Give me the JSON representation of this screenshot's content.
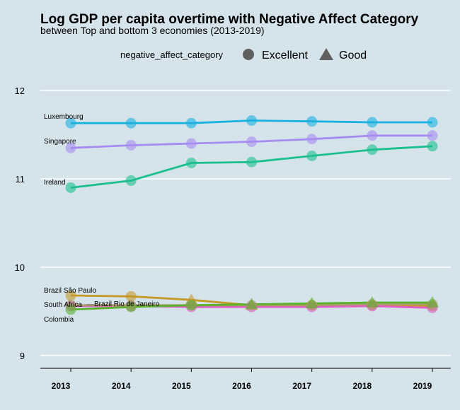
{
  "chart_data": {
    "type": "line",
    "title": "Log GDP per capita overtime with Negative Affect Category",
    "subtitle": "between Top and bottom 3 economies (2013-2019)",
    "xlabel": "",
    "ylabel": "",
    "x": [
      2013,
      2014,
      2015,
      2016,
      2017,
      2018,
      2019
    ],
    "xlim": [
      2013,
      2019
    ],
    "ylim": [
      8.95,
      12.1
    ],
    "y_ticks": [
      9,
      10,
      11,
      12
    ],
    "grid": "horizontal",
    "legend": {
      "title": "negative_affect_category",
      "placement": "top",
      "items": [
        {
          "label": "Excellent",
          "shape": "circle"
        },
        {
          "label": "Good",
          "shape": "triangle"
        }
      ]
    },
    "series": [
      {
        "name": "Luxembourg",
        "color": "#1ab0e0",
        "values": [
          11.63,
          11.63,
          11.63,
          11.66,
          11.65,
          11.64,
          11.64
        ],
        "shapes": [
          "circle",
          "circle",
          "circle",
          "circle",
          "circle",
          "circle",
          "circle"
        ]
      },
      {
        "name": "Singapore",
        "color": "#a68cf0",
        "values": [
          11.35,
          11.38,
          11.4,
          11.42,
          11.45,
          11.49,
          11.49
        ],
        "shapes": [
          "circle",
          "circle",
          "circle",
          "circle",
          "circle",
          "circle",
          "circle"
        ]
      },
      {
        "name": "Ireland",
        "color": "#1cbf8e",
        "values": [
          10.9,
          10.98,
          11.18,
          11.19,
          11.26,
          11.33,
          11.37
        ],
        "shapes": [
          "circle",
          "circle",
          "circle",
          "circle",
          "circle",
          "circle",
          "circle"
        ]
      },
      {
        "name": "Brazil São Paulo",
        "color": "#c49a28",
        "values": [
          9.68,
          9.67,
          9.63,
          9.57,
          9.57,
          9.57,
          9.56
        ],
        "shapes": [
          "circle",
          "circle",
          "triangle",
          "triangle",
          "circle",
          "circle",
          "circle"
        ]
      },
      {
        "name": "Brazil Rio de Janeiro",
        "color": "#e05cc8",
        "values": [
          9.56,
          9.56,
          9.55,
          9.55,
          9.55,
          9.56,
          9.54
        ],
        "shapes": [
          "circle",
          "circle",
          "circle",
          "circle",
          "circle",
          "circle",
          "circle"
        ]
      },
      {
        "name": "South Africa",
        "color": "#ad9a6a",
        "values": [
          9.57,
          9.57,
          9.57,
          9.57,
          9.57,
          9.58,
          9.58
        ],
        "shapes": [
          "circle",
          "circle",
          "circle",
          "circle",
          "circle",
          "circle",
          "circle"
        ]
      },
      {
        "name": "Colombia",
        "color": "#5ab12d",
        "values": [
          9.52,
          9.55,
          9.57,
          9.58,
          9.59,
          9.6,
          9.6
        ],
        "shapes": [
          "circle",
          "circle",
          "circle",
          "triangle",
          "triangle",
          "triangle",
          "triangle"
        ]
      }
    ]
  }
}
